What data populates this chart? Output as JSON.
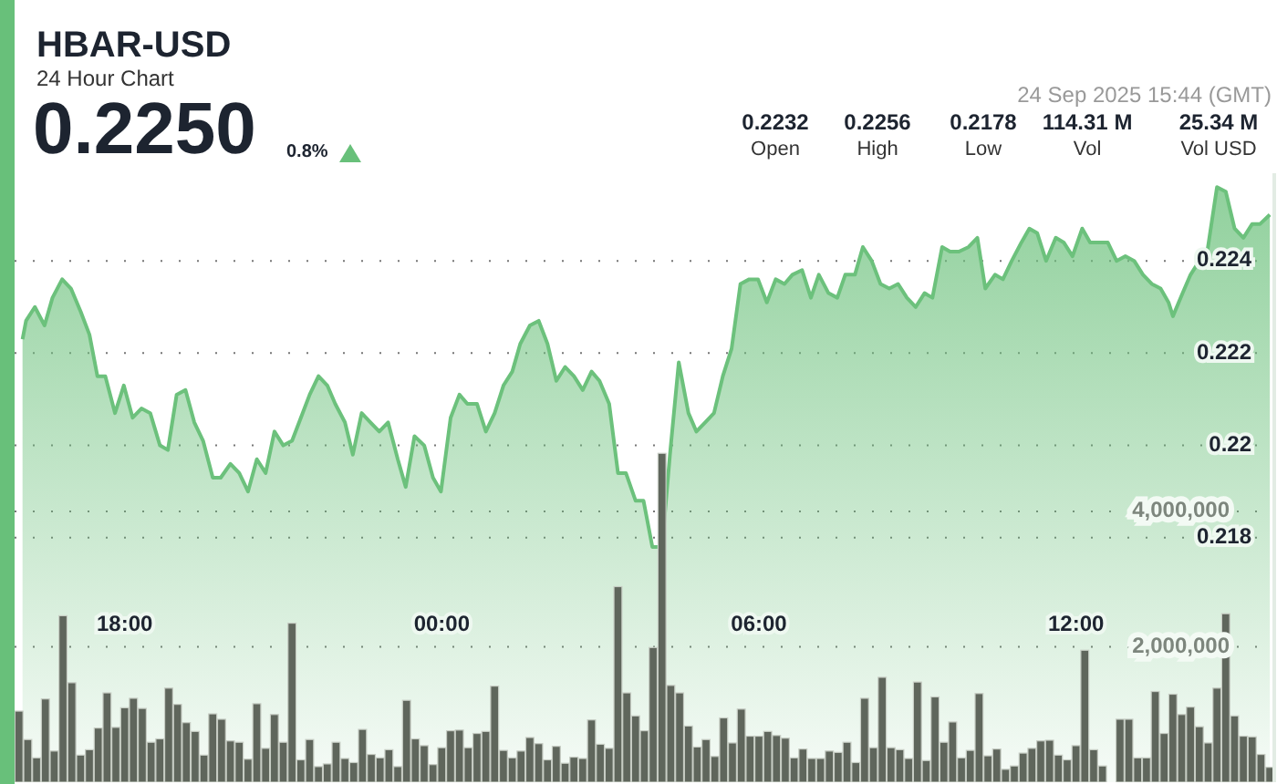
{
  "chart_data": {
    "type": "area",
    "title": "HBAR-USD",
    "subtitle": "24 Hour Chart",
    "annotations": [
      "0.2250",
      "0.8%",
      "24 Sep 2025 15:44 (GMT)",
      "0.2232",
      "Open",
      "0.2256",
      "High",
      "0.2178",
      "Low",
      "114.31 M",
      "Vol",
      "25.34 M",
      "Vol USD"
    ],
    "xlim": [
      "2025-09-23T15:55",
      "2025-09-24T15:44"
    ],
    "xticks": [
      {
        "value": "2025-09-23T18:00",
        "label": "18:00"
      },
      {
        "value": "2025-09-24T00:00",
        "label": "00:00"
      },
      {
        "value": "2025-09-24T06:00",
        "label": "06:00"
      },
      {
        "value": "2025-09-24T12:00",
        "label": "12:00"
      }
    ],
    "ylim": [
      0.2127,
      0.2259
    ],
    "yticks": [
      0.218,
      0.22,
      0.222,
      0.224
    ],
    "y2lim": [
      0,
      9000000
    ],
    "y2ticks": [
      {
        "value": 2000000,
        "label": "2,000,000"
      },
      {
        "value": 4000000,
        "label": "4,000,000"
      }
    ],
    "grid": "y",
    "legend": false,
    "marker": "none",
    "line_style": "solid",
    "series": [
      {
        "color": "#6cc17c",
        "x": [
          "2025-09-23T16:04",
          "2025-09-23T16:08",
          "2025-09-23T16:18",
          "2025-09-23T16:29",
          "2025-09-23T16:38",
          "2025-09-23T16:49",
          "2025-09-23T16:59",
          "2025-09-23T17:10",
          "2025-09-23T17:20",
          "2025-09-23T17:29",
          "2025-09-23T17:38",
          "2025-09-23T17:49",
          "2025-09-23T17:59",
          "2025-09-23T18:09",
          "2025-09-23T18:19",
          "2025-09-23T18:29",
          "2025-09-23T18:40",
          "2025-09-23T18:49",
          "2025-09-23T18:59",
          "2025-09-23T19:09",
          "2025-09-23T19:19",
          "2025-09-23T19:29",
          "2025-09-23T19:40",
          "2025-09-23T19:49",
          "2025-09-23T20:00",
          "2025-09-23T20:10",
          "2025-09-23T20:20",
          "2025-09-23T20:30",
          "2025-09-23T20:40",
          "2025-09-23T20:50",
          "2025-09-23T21:00",
          "2025-09-23T21:10",
          "2025-09-23T21:20",
          "2025-09-23T21:30",
          "2025-09-23T21:40",
          "2025-09-23T21:50",
          "2025-09-23T21:59",
          "2025-09-23T22:10",
          "2025-09-23T22:19",
          "2025-09-23T22:29",
          "2025-09-23T22:39",
          "2025-09-23T22:49",
          "2025-09-23T22:59",
          "2025-09-23T23:10",
          "2025-09-23T23:19",
          "2025-09-23T23:29",
          "2025-09-23T23:40",
          "2025-09-23T23:50",
          "2025-09-23T23:59",
          "2025-09-24T00:10",
          "2025-09-24T00:20",
          "2025-09-24T00:29",
          "2025-09-24T00:40",
          "2025-09-24T00:50",
          "2025-09-24T01:00",
          "2025-09-24T01:10",
          "2025-09-24T01:20",
          "2025-09-24T01:29",
          "2025-09-24T01:40",
          "2025-09-24T01:50",
          "2025-09-24T02:00",
          "2025-09-24T02:10",
          "2025-09-24T02:20",
          "2025-09-24T02:30",
          "2025-09-24T02:40",
          "2025-09-24T02:50",
          "2025-09-24T02:59",
          "2025-09-24T03:10",
          "2025-09-24T03:20",
          "2025-09-24T03:29",
          "2025-09-24T03:40",
          "2025-09-24T03:49",
          "2025-09-24T03:59",
          "2025-09-24T04:10",
          "2025-09-24T04:19",
          "2025-09-24T04:29",
          "2025-09-24T04:40",
          "2025-09-24T04:49",
          "2025-09-24T04:59",
          "2025-09-24T05:09",
          "2025-09-24T05:19",
          "2025-09-24T05:29",
          "2025-09-24T05:39",
          "2025-09-24T05:49",
          "2025-09-24T05:59",
          "2025-09-24T06:09",
          "2025-09-24T06:19",
          "2025-09-24T06:29",
          "2025-09-24T06:38",
          "2025-09-24T06:49",
          "2025-09-24T06:59",
          "2025-09-24T07:08",
          "2025-09-24T07:19",
          "2025-09-24T07:29",
          "2025-09-24T07:38",
          "2025-09-24T07:49",
          "2025-09-24T07:58",
          "2025-09-24T08:08",
          "2025-09-24T08:18",
          "2025-09-24T08:28",
          "2025-09-24T08:38",
          "2025-09-24T08:48",
          "2025-09-24T08:58",
          "2025-09-24T09:08",
          "2025-09-24T09:17",
          "2025-09-24T09:28",
          "2025-09-24T09:37",
          "2025-09-24T09:47",
          "2025-09-24T09:58",
          "2025-09-24T10:08",
          "2025-09-24T10:17",
          "2025-09-24T10:28",
          "2025-09-24T10:37",
          "2025-09-24T10:47",
          "2025-09-24T10:58",
          "2025-09-24T11:07",
          "2025-09-24T11:16",
          "2025-09-24T11:26",
          "2025-09-24T11:37",
          "2025-09-24T11:46",
          "2025-09-24T11:56",
          "2025-09-24T12:07",
          "2025-09-24T12:16",
          "2025-09-24T12:26",
          "2025-09-24T12:36",
          "2025-09-24T12:46",
          "2025-09-24T12:56",
          "2025-09-24T13:06",
          "2025-09-24T13:16",
          "2025-09-24T13:26",
          "2025-09-24T13:36",
          "2025-09-24T13:45",
          "2025-09-24T13:50",
          "2025-09-24T14:01",
          "2025-09-24T14:10",
          "2025-09-24T14:20",
          "2025-09-24T14:29",
          "2025-09-24T14:40",
          "2025-09-24T14:50",
          "2025-09-24T15:00",
          "2025-09-24T15:10",
          "2025-09-24T15:20",
          "2025-09-24T15:29",
          "2025-09-24T15:40"
        ],
        "values": [
          0.2223,
          0.2227,
          0.223,
          0.2226,
          0.2232,
          0.2236,
          0.2234,
          0.2229,
          0.2224,
          0.2215,
          0.2215,
          0.2207,
          0.2213,
          0.2206,
          0.2208,
          0.2207,
          0.22,
          0.2199,
          0.2211,
          0.2212,
          0.2205,
          0.2201,
          0.2193,
          0.2193,
          0.2196,
          0.2194,
          0.219,
          0.2197,
          0.2194,
          0.2203,
          0.22,
          0.2201,
          0.2206,
          0.2211,
          0.2215,
          0.2213,
          0.2209,
          0.2205,
          0.2198,
          0.2207,
          0.2205,
          0.2203,
          0.2205,
          0.2197,
          0.2191,
          0.2202,
          0.22,
          0.2193,
          0.219,
          0.2206,
          0.2211,
          0.2209,
          0.2209,
          0.2203,
          0.2207,
          0.2213,
          0.2216,
          0.2222,
          0.2226,
          0.2227,
          0.2222,
          0.2214,
          0.2217,
          0.2215,
          0.2212,
          0.2216,
          0.2214,
          0.2209,
          0.2194,
          0.2194,
          0.2188,
          0.2188,
          0.2178,
          0.2178,
          0.2198,
          0.2218,
          0.2207,
          0.2203,
          0.2205,
          0.2207,
          0.2215,
          0.2221,
          0.2235,
          0.2236,
          0.2236,
          0.2231,
          0.2236,
          0.2235,
          0.2237,
          0.2238,
          0.2232,
          0.2237,
          0.2233,
          0.2232,
          0.2237,
          0.2237,
          0.2243,
          0.224,
          0.2235,
          0.2234,
          0.2235,
          0.2232,
          0.223,
          0.2233,
          0.2232,
          0.2243,
          0.2242,
          0.2242,
          0.2243,
          0.2245,
          0.2234,
          0.2237,
          0.2236,
          0.224,
          0.2244,
          0.2247,
          0.2246,
          0.224,
          0.2245,
          0.2244,
          0.2241,
          0.2247,
          0.2244,
          0.2244,
          0.2244,
          0.224,
          0.2241,
          0.224,
          0.2237,
          0.2235,
          0.2234,
          0.2231,
          0.2228,
          0.2233,
          0.2237,
          0.224,
          0.2242,
          0.2256,
          0.2255,
          0.2247,
          0.2245,
          0.2248,
          0.2248,
          0.225
        ]
      },
      {
        "type": "bar",
        "axis": "y2",
        "color": "#5f665c",
        "x": [
          "2025-09-23T16:00",
          "2025-09-23T16:10",
          "2025-09-23T16:20",
          "2025-09-23T16:30",
          "2025-09-23T16:40",
          "2025-09-23T16:50",
          "2025-09-23T17:00",
          "2025-09-23T17:10",
          "2025-09-23T17:20",
          "2025-09-23T17:30",
          "2025-09-23T17:40",
          "2025-09-23T17:50",
          "2025-09-23T18:00",
          "2025-09-23T18:10",
          "2025-09-23T18:20",
          "2025-09-23T18:30",
          "2025-09-23T18:40",
          "2025-09-23T18:50",
          "2025-09-23T19:00",
          "2025-09-23T19:10",
          "2025-09-23T19:20",
          "2025-09-23T19:30",
          "2025-09-23T19:40",
          "2025-09-23T19:50",
          "2025-09-23T20:00",
          "2025-09-23T20:10",
          "2025-09-23T20:20",
          "2025-09-23T20:30",
          "2025-09-23T20:40",
          "2025-09-23T20:50",
          "2025-09-23T21:00",
          "2025-09-23T21:10",
          "2025-09-23T21:20",
          "2025-09-23T21:30",
          "2025-09-23T21:40",
          "2025-09-23T21:50",
          "2025-09-23T22:00",
          "2025-09-23T22:10",
          "2025-09-23T22:20",
          "2025-09-23T22:30",
          "2025-09-23T22:40",
          "2025-09-23T22:50",
          "2025-09-23T23:00",
          "2025-09-23T23:10",
          "2025-09-23T23:20",
          "2025-09-23T23:30",
          "2025-09-23T23:40",
          "2025-09-23T23:50",
          "2025-09-24T00:00",
          "2025-09-24T00:10",
          "2025-09-24T00:20",
          "2025-09-24T00:30",
          "2025-09-24T00:40",
          "2025-09-24T00:50",
          "2025-09-24T01:00",
          "2025-09-24T01:10",
          "2025-09-24T01:20",
          "2025-09-24T01:30",
          "2025-09-24T01:40",
          "2025-09-24T01:50",
          "2025-09-24T02:00",
          "2025-09-24T02:10",
          "2025-09-24T02:20",
          "2025-09-24T02:30",
          "2025-09-24T02:40",
          "2025-09-24T02:50",
          "2025-09-24T03:00",
          "2025-09-24T03:10",
          "2025-09-24T03:20",
          "2025-09-24T03:30",
          "2025-09-24T03:40",
          "2025-09-24T03:50",
          "2025-09-24T04:00",
          "2025-09-24T04:10",
          "2025-09-24T04:20",
          "2025-09-24T04:30",
          "2025-09-24T04:40",
          "2025-09-24T04:50",
          "2025-09-24T05:00",
          "2025-09-24T05:10",
          "2025-09-24T05:20",
          "2025-09-24T05:30",
          "2025-09-24T05:40",
          "2025-09-24T05:50",
          "2025-09-24T06:00",
          "2025-09-24T06:10",
          "2025-09-24T06:20",
          "2025-09-24T06:30",
          "2025-09-24T06:40",
          "2025-09-24T06:50",
          "2025-09-24T07:00",
          "2025-09-24T07:10",
          "2025-09-24T07:20",
          "2025-09-24T07:30",
          "2025-09-24T07:40",
          "2025-09-24T07:50",
          "2025-09-24T08:00",
          "2025-09-24T08:10",
          "2025-09-24T08:20",
          "2025-09-24T08:30",
          "2025-09-24T08:40",
          "2025-09-24T08:50",
          "2025-09-24T09:00",
          "2025-09-24T09:10",
          "2025-09-24T09:20",
          "2025-09-24T09:30",
          "2025-09-24T09:40",
          "2025-09-24T09:50",
          "2025-09-24T10:00",
          "2025-09-24T10:10",
          "2025-09-24T10:20",
          "2025-09-24T10:30",
          "2025-09-24T10:40",
          "2025-09-24T10:50",
          "2025-09-24T11:00",
          "2025-09-24T11:10",
          "2025-09-24T11:20",
          "2025-09-24T11:30",
          "2025-09-24T11:40",
          "2025-09-24T11:50",
          "2025-09-24T12:00",
          "2025-09-24T12:10",
          "2025-09-24T12:20",
          "2025-09-24T12:30",
          "2025-09-24T12:40",
          "2025-09-24T12:50",
          "2025-09-24T13:00",
          "2025-09-24T13:10",
          "2025-09-24T13:20",
          "2025-09-24T13:30",
          "2025-09-24T13:40",
          "2025-09-24T13:50",
          "2025-09-24T14:00",
          "2025-09-24T14:10",
          "2025-09-24T14:20",
          "2025-09-24T14:30",
          "2025-09-24T14:40",
          "2025-09-24T14:50",
          "2025-09-24T15:00",
          "2025-09-24T15:10",
          "2025-09-24T15:20",
          "2025-09-24T15:30",
          "2025-09-24T15:40"
        ],
        "values": [
          1050000,
          630000,
          360000,
          1230000,
          460000,
          2460000,
          1470000,
          400000,
          480000,
          800000,
          1320000,
          810000,
          1100000,
          1240000,
          1090000,
          590000,
          640000,
          1390000,
          1150000,
          880000,
          750000,
          400000,
          1010000,
          930000,
          610000,
          590000,
          340000,
          1160000,
          500000,
          1000000,
          590000,
          2350000,
          330000,
          630000,
          230000,
          270000,
          590000,
          350000,
          290000,
          780000,
          410000,
          360000,
          480000,
          230000,
          1210000,
          640000,
          540000,
          260000,
          510000,
          760000,
          770000,
          510000,
          720000,
          750000,
          1420000,
          470000,
          360000,
          460000,
          660000,
          570000,
          330000,
          530000,
          280000,
          370000,
          350000,
          920000,
          560000,
          500000,
          2890000,
          1320000,
          980000,
          760000,
          1990000,
          4860000,
          1430000,
          1320000,
          830000,
          520000,
          630000,
          380000,
          950000,
          580000,
          1080000,
          680000,
          680000,
          750000,
          690000,
          650000,
          360000,
          490000,
          350000,
          350000,
          460000,
          440000,
          590000,
          290000,
          1240000,
          510000,
          1550000,
          510000,
          480000,
          350000,
          1480000,
          320000,
          1260000,
          590000,
          890000,
          360000,
          470000,
          1310000,
          390000,
          490000,
          190000,
          240000,
          430000,
          500000,
          610000,
          620000,
          400000,
          330000,
          540000,
          1950000,
          480000,
          240000,
          null,
          930000,
          930000,
          360000,
          360000,
          1340000,
          720000,
          1300000,
          1000000,
          1110000,
          820000,
          580000,
          1390000,
          2490000,
          980000,
          680000,
          670000,
          410000,
          220000
        ]
      }
    ]
  }
}
